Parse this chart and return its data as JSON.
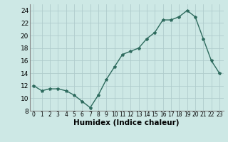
{
  "x": [
    0,
    1,
    2,
    3,
    4,
    5,
    6,
    7,
    8,
    9,
    10,
    11,
    12,
    13,
    14,
    15,
    16,
    17,
    18,
    19,
    20,
    21,
    22,
    23
  ],
  "y": [
    12,
    11.2,
    11.5,
    11.5,
    11.2,
    10.5,
    9.5,
    8.5,
    10.5,
    13,
    15,
    17,
    17.5,
    18,
    19.5,
    20.5,
    22.5,
    22.5,
    23,
    24,
    23,
    19.5,
    16,
    14
  ],
  "line_color": "#2e6b5e",
  "marker": "*",
  "marker_size": 3,
  "bg_color": "#cde8e5",
  "grid_color": "#b0cccc",
  "xlabel": "Humidex (Indice chaleur)",
  "xlabel_fontsize": 7.5,
  "xlim": [
    -0.5,
    23.5
  ],
  "ylim": [
    8,
    25
  ],
  "yticks": [
    8,
    10,
    12,
    14,
    16,
    18,
    20,
    22,
    24
  ],
  "xticks": [
    0,
    1,
    2,
    3,
    4,
    5,
    6,
    7,
    8,
    9,
    10,
    11,
    12,
    13,
    14,
    15,
    16,
    17,
    18,
    19,
    20,
    21,
    22,
    23
  ]
}
